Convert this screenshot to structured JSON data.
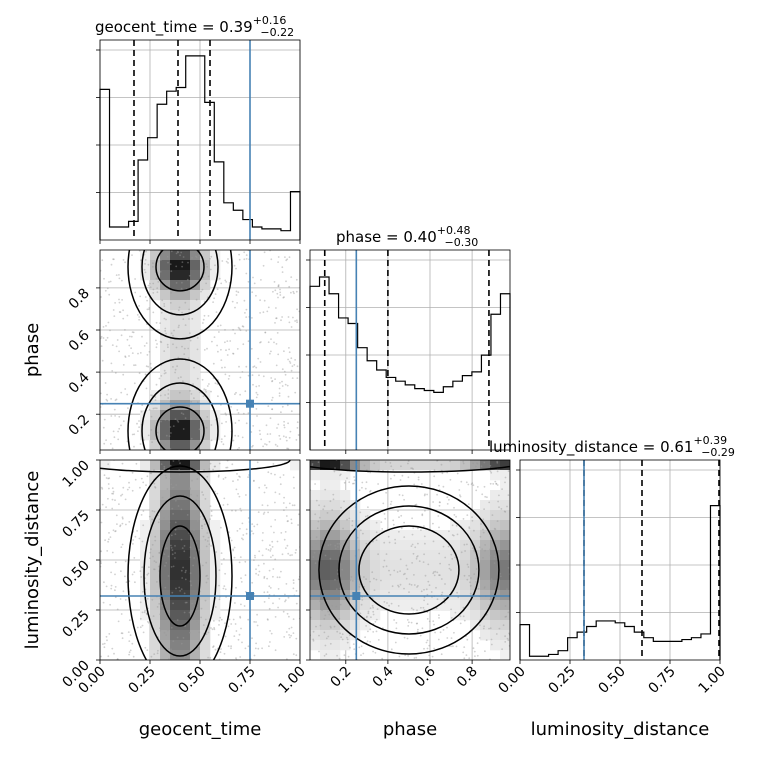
{
  "chart_data": {
    "type": "corner",
    "parameters": [
      "geocent_time",
      "phase",
      "luminosity_distance"
    ],
    "grid": true,
    "truth_color": "#4682b4",
    "titles": [
      {
        "param": "geocent_time",
        "name": "geocent_time",
        "median": "0.39",
        "plus": "+0.16",
        "minus": "−0.22"
      },
      {
        "param": "phase",
        "name": "phase",
        "median": "0.40",
        "plus": "+0.48",
        "minus": "−0.30"
      },
      {
        "param": "luminosity_distance",
        "name": "luminosity_distance",
        "median": "0.61",
        "plus": "+0.39",
        "minus": "−0.29"
      }
    ],
    "axes": {
      "geocent_time": {
        "range": [
          0.0,
          1.0
        ],
        "ticks": [
          0.0,
          0.25,
          0.5,
          0.75,
          1.0
        ],
        "tick_labels": [
          "0.00",
          "0.25",
          "0.50",
          "0.75",
          "1.00"
        ]
      },
      "phase": {
        "range": [
          0.03,
          0.98
        ],
        "ticks": [
          0.2,
          0.4,
          0.6,
          0.8
        ],
        "tick_labels": [
          "0.2",
          "0.4",
          "0.6",
          "0.8"
        ]
      },
      "luminosity_distance": {
        "range": [
          0.0,
          1.0
        ],
        "ticks": [
          0.0,
          0.25,
          0.5,
          0.75,
          1.0
        ],
        "tick_labels": [
          "0.00",
          "0.25",
          "0.50",
          "0.75",
          "1.00"
        ]
      }
    },
    "y_tick_labels": {
      "phase": [
        "0.2",
        "0.4",
        "0.6",
        "0.8"
      ],
      "luminosity_distance": [
        "0.00",
        "0.25",
        "0.50",
        "0.75",
        "1.00"
      ]
    },
    "x_labels": [
      "geocent_time",
      "phase",
      "luminosity_distance"
    ],
    "y_labels": [
      "phase",
      "luminosity_distance"
    ],
    "truths": {
      "geocent_time": 0.75,
      "phase": 0.25,
      "luminosity_distance": 0.32
    },
    "quantiles": {
      "geocent_time": [
        0.17,
        0.39,
        0.55
      ],
      "phase": [
        0.1,
        0.4,
        0.88
      ],
      "luminosity_distance": [
        0.32,
        0.61,
        1.0
      ]
    },
    "histograms": [
      {
        "param": "geocent_time",
        "range": [
          0.0,
          1.0
        ],
        "counts": [
          0.81,
          0.07,
          0.07,
          0.1,
          0.43,
          0.55,
          0.73,
          0.8,
          0.82,
          0.99,
          0.99,
          0.74,
          0.42,
          0.2,
          0.16,
          0.11,
          0.07,
          0.06,
          0.06,
          0.05,
          0.26
        ]
      },
      {
        "param": "phase",
        "range": [
          0.03,
          0.98
        ],
        "counts": [
          0.88,
          0.93,
          0.84,
          0.71,
          0.68,
          0.55,
          0.48,
          0.43,
          0.39,
          0.37,
          0.35,
          0.33,
          0.32,
          0.31,
          0.34,
          0.37,
          0.4,
          0.42,
          0.51,
          0.73,
          0.84
        ]
      },
      {
        "param": "luminosity_distance",
        "range": [
          0.0,
          1.0
        ],
        "counts": [
          0.19,
          0.02,
          0.02,
          0.03,
          0.05,
          0.12,
          0.15,
          0.18,
          0.21,
          0.21,
          0.2,
          0.18,
          0.15,
          0.12,
          0.1,
          0.1,
          0.1,
          0.11,
          0.12,
          0.14,
          0.83
        ]
      }
    ],
    "contour_panels": [
      {
        "x": "geocent_time",
        "y": "phase"
      },
      {
        "x": "geocent_time",
        "y": "luminosity_distance"
      },
      {
        "x": "phase",
        "y": "luminosity_distance"
      }
    ]
  }
}
